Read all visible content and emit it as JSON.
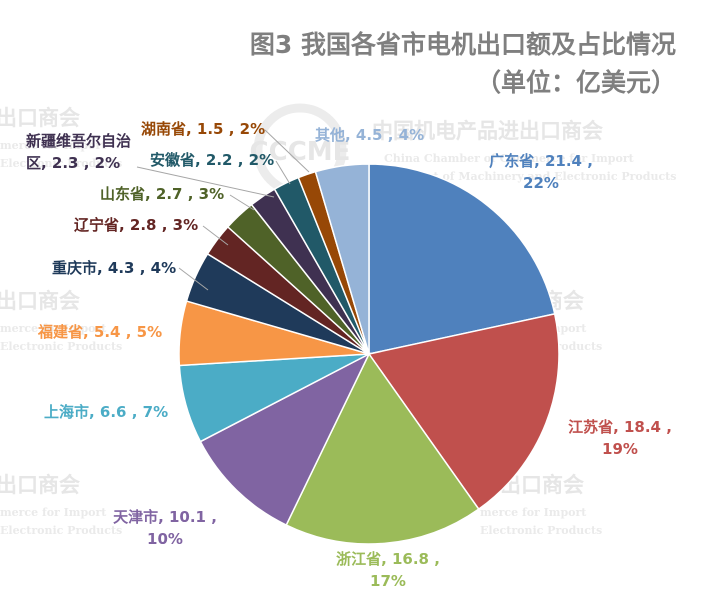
{
  "chart_data": {
    "type": "pie",
    "title": "图3  我国各省市电机出口额及占比情况",
    "subtitle": "（单位：亿美元）",
    "series": [
      {
        "name": "广东省",
        "value": 21.4,
        "percent": "22%",
        "color": "#4f81bd"
      },
      {
        "name": "江苏省",
        "value": 18.4,
        "percent": "19%",
        "color": "#c0504d"
      },
      {
        "name": "浙江省",
        "value": 16.8,
        "percent": "17%",
        "color": "#9bbb59"
      },
      {
        "name": "天津市",
        "value": 10.1,
        "percent": "10%",
        "color": "#8064a2"
      },
      {
        "name": "上海市",
        "value": 6.6,
        "percent": "7%",
        "color": "#4bacc6"
      },
      {
        "name": "福建省",
        "value": 5.4,
        "percent": "5%",
        "color": "#f79646"
      },
      {
        "name": "重庆市",
        "value": 4.3,
        "percent": "4%",
        "color": "#1f3a5a"
      },
      {
        "name": "辽宁省",
        "value": 2.8,
        "percent": "3%",
        "color": "#632523"
      },
      {
        "name": "山东省",
        "value": 2.7,
        "percent": "3%",
        "color": "#4f6228"
      },
      {
        "name": "新疆维吾尔自治区",
        "value": 2.3,
        "percent": "2%",
        "color": "#3f3151"
      },
      {
        "name": "安徽省",
        "value": 2.2,
        "percent": "2%",
        "color": "#215968"
      },
      {
        "name": "湖南省",
        "value": 1.5,
        "percent": "2%",
        "color": "#974806"
      },
      {
        "name": "其他",
        "value": 4.5,
        "percent": "4%",
        "color": "#95b3d7"
      }
    ]
  },
  "watermark": {
    "cn": "中国机电产品进出口商会",
    "cn_fragment": "出口商会",
    "en_line1": "China Chamber of Commerce for Import",
    "en_line2": "& Export of Machinery and Electronic Products",
    "en_fragment1": "merce for Import",
    "en_fragment2": "Electronic Products",
    "logo_text": "CCCME"
  }
}
